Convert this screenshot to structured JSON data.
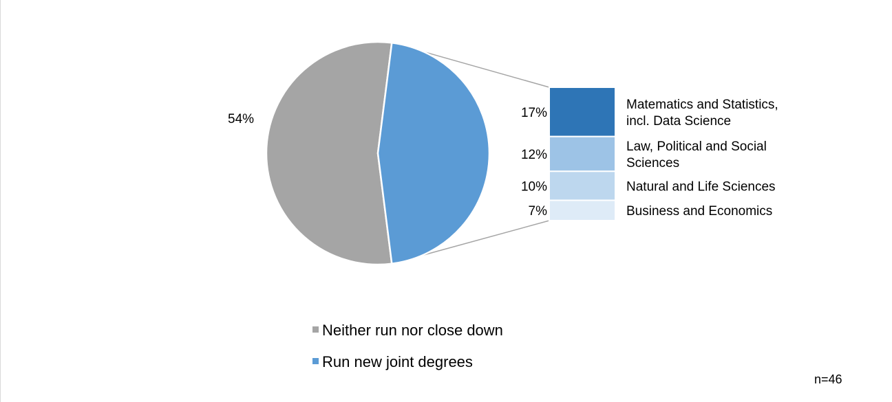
{
  "chart_data": {
    "type": "bar-of-pie",
    "pie": {
      "slices": [
        {
          "name": "Neither run nor close down",
          "value": 54,
          "label": "54%",
          "color": "#a5a5a5"
        },
        {
          "name": "Run new joint degrees",
          "value": 46,
          "label": "",
          "color": "#5b9bd5"
        }
      ]
    },
    "breakdown_bar": {
      "of_slice": "Run new joint degrees",
      "segments": [
        {
          "category": "Matematics and Statistics, incl. Data Science",
          "value": 17,
          "label": "17%",
          "color": "#2e75b6"
        },
        {
          "category": "Law, Political and Social Sciences",
          "value": 12,
          "label": "12%",
          "color": "#9dc3e6"
        },
        {
          "category": "Natural and Life Sciences",
          "value": 10,
          "label": "10%",
          "color": "#bdd7ee"
        },
        {
          "category": "Business and Economics",
          "value": 7,
          "label": "7%",
          "color": "#deebf7"
        }
      ]
    },
    "legend": {
      "placement": "bottom-center",
      "entries": [
        "Neither run nor close down",
        "Run new joint degrees"
      ]
    },
    "note": "n=46"
  }
}
